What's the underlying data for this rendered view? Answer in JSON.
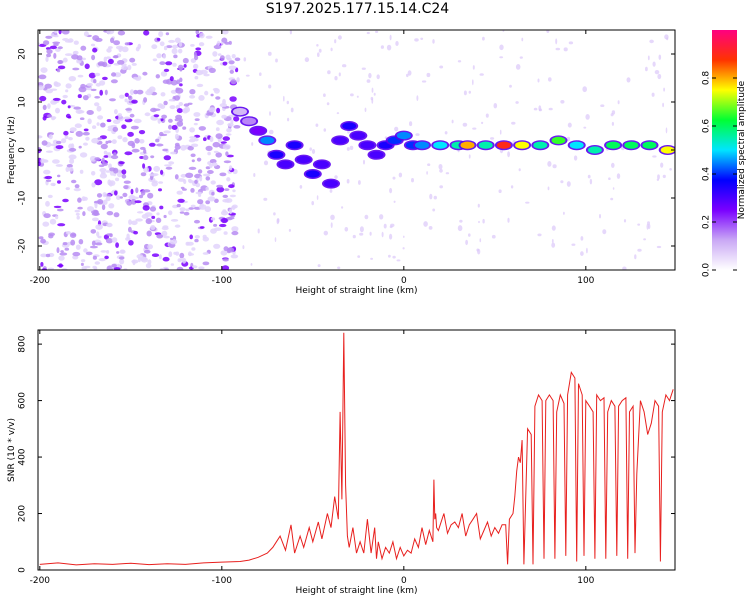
{
  "title": "S197.2025.177.15.14.C24",
  "chart_data": [
    {
      "type": "heatmap",
      "title": "S197.2025.177.15.14.C24",
      "xlabel": "Height of straight line (km)",
      "ylabel": "Frequency (Hz)",
      "xlim": [
        -201,
        149
      ],
      "ylim": [
        -25,
        25
      ],
      "x_ticks": [
        -200,
        -100,
        0,
        100
      ],
      "y_ticks": [
        -20,
        -10,
        0,
        10,
        20
      ],
      "colorbar": {
        "label": "Normalized spectral amplitude",
        "range": [
          0,
          1
        ],
        "ticks": [
          "0.0",
          "0.2",
          "0.4",
          "0.6",
          "0.8"
        ],
        "colormap": [
          "#ffffff",
          "#c9a8f5",
          "#7a00ff",
          "#0000ff",
          "#00e5ff",
          "#00ff33",
          "#ffff00",
          "#ff3300",
          "#ff0080"
        ]
      },
      "ridge": [
        {
          "x": -90,
          "y": 8,
          "amp": 0.1
        },
        {
          "x": -85,
          "y": 6,
          "amp": 0.15
        },
        {
          "x": -80,
          "y": 4,
          "amp": 0.25
        },
        {
          "x": -75,
          "y": 2,
          "amp": 0.45
        },
        {
          "x": -70,
          "y": -1,
          "amp": 0.35
        },
        {
          "x": -65,
          "y": -3,
          "amp": 0.3
        },
        {
          "x": -60,
          "y": 1,
          "amp": 0.35
        },
        {
          "x": -55,
          "y": -2,
          "amp": 0.3
        },
        {
          "x": -50,
          "y": -5,
          "amp": 0.35
        },
        {
          "x": -45,
          "y": -3,
          "amp": 0.3
        },
        {
          "x": -40,
          "y": -7,
          "amp": 0.3
        },
        {
          "x": -35,
          "y": 2,
          "amp": 0.3
        },
        {
          "x": -30,
          "y": 5,
          "amp": 0.35
        },
        {
          "x": -25,
          "y": 3,
          "amp": 0.3
        },
        {
          "x": -20,
          "y": 1,
          "amp": 0.3
        },
        {
          "x": -15,
          "y": -1,
          "amp": 0.3
        },
        {
          "x": -10,
          "y": 1,
          "amp": 0.35
        },
        {
          "x": -5,
          "y": 2,
          "amp": 0.4
        },
        {
          "x": 0,
          "y": 3,
          "amp": 0.45
        },
        {
          "x": 5,
          "y": 1,
          "amp": 0.4
        },
        {
          "x": 10,
          "y": 1,
          "amp": 0.45
        },
        {
          "x": 20,
          "y": 1,
          "amp": 0.5
        },
        {
          "x": 30,
          "y": 1,
          "amp": 0.55
        },
        {
          "x": 35,
          "y": 1,
          "amp": 0.8
        },
        {
          "x": 45,
          "y": 1,
          "amp": 0.55
        },
        {
          "x": 55,
          "y": 1,
          "amp": 0.9
        },
        {
          "x": 65,
          "y": 1,
          "amp": 0.75
        },
        {
          "x": 75,
          "y": 1,
          "amp": 0.55
        },
        {
          "x": 85,
          "y": 2,
          "amp": 0.65
        },
        {
          "x": 95,
          "y": 1,
          "amp": 0.5
        },
        {
          "x": 105,
          "y": 0,
          "amp": 0.55
        },
        {
          "x": 115,
          "y": 1,
          "amp": 0.6
        },
        {
          "x": 125,
          "y": 1,
          "amp": 0.6
        },
        {
          "x": 135,
          "y": 1,
          "amp": 0.6
        },
        {
          "x": 145,
          "y": 0,
          "amp": 0.75
        }
      ]
    },
    {
      "type": "line",
      "xlabel": "Height of straight line (km)",
      "ylabel": "SNR (10 * v/v)",
      "xlim": [
        -201,
        149
      ],
      "ylim": [
        0,
        850
      ],
      "x_ticks": [
        -200,
        -100,
        0,
        100
      ],
      "y_ticks": [
        0,
        200,
        400,
        600,
        800
      ],
      "color": "#e8201e",
      "series": [
        {
          "x": [
            -200,
            -190,
            -180,
            -170,
            -160,
            -150,
            -140,
            -130,
            -120,
            -110,
            -100,
            -90,
            -85,
            -80,
            -75,
            -72,
            -70,
            -68,
            -65,
            -62,
            -60,
            -57,
            -55,
            -52,
            -50,
            -47,
            -45,
            -42,
            -40,
            -38,
            -36,
            -35,
            -34,
            -33,
            -32,
            -31,
            -30,
            -28,
            -26,
            -24,
            -22,
            -20,
            -18,
            -16,
            -15,
            -14,
            -12,
            -10,
            -8,
            -6,
            -4,
            -2,
            0,
            2,
            4,
            6,
            8,
            10,
            12,
            14,
            16,
            16.5,
            17,
            17.5,
            18,
            19,
            20,
            22,
            24,
            26,
            28,
            30,
            32,
            34,
            36,
            38,
            40,
            42,
            44,
            46,
            48,
            50,
            52,
            54,
            56,
            57,
            58,
            60,
            61,
            62,
            63,
            64,
            65,
            66,
            68,
            70,
            71,
            72,
            74,
            76,
            77,
            78,
            80,
            82,
            83,
            84,
            86,
            88,
            89,
            90,
            92,
            94,
            95,
            96,
            98,
            99,
            100,
            102,
            104,
            105,
            106,
            108,
            110,
            111,
            112,
            114,
            116,
            117,
            118,
            120,
            122,
            123,
            124,
            126,
            127,
            128,
            130,
            132,
            134,
            136,
            138,
            140,
            141,
            142,
            144,
            146,
            148
          ],
          "y": [
            20,
            25,
            18,
            22,
            20,
            24,
            19,
            22,
            20,
            25,
            28,
            30,
            35,
            45,
            60,
            80,
            100,
            120,
            70,
            160,
            60,
            120,
            80,
            150,
            100,
            170,
            110,
            200,
            150,
            260,
            180,
            560,
            250,
            840,
            300,
            120,
            80,
            150,
            60,
            100,
            60,
            180,
            60,
            150,
            40,
            100,
            40,
            80,
            60,
            100,
            40,
            80,
            50,
            70,
            60,
            110,
            80,
            150,
            90,
            140,
            100,
            320,
            180,
            200,
            150,
            140,
            160,
            200,
            130,
            160,
            170,
            150,
            200,
            120,
            160,
            180,
            200,
            110,
            140,
            170,
            120,
            150,
            130,
            160,
            160,
            20,
            180,
            200,
            260,
            350,
            400,
            380,
            460,
            20,
            500,
            480,
            20,
            580,
            620,
            600,
            40,
            600,
            620,
            600,
            40,
            560,
            620,
            590,
            50,
            620,
            700,
            680,
            30,
            660,
            620,
            50,
            600,
            580,
            560,
            40,
            620,
            600,
            610,
            40,
            560,
            600,
            580,
            50,
            580,
            600,
            610,
            40,
            560,
            580,
            60,
            340,
            600,
            560,
            480,
            520,
            600,
            580,
            30,
            560,
            620,
            600,
            640
          ]
        }
      ]
    }
  ]
}
